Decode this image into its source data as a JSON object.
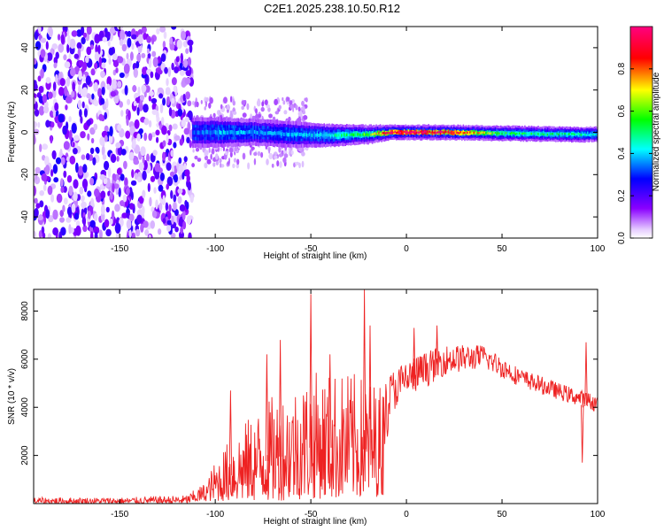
{
  "figure_title": "C2E1.2025.238.10.50.R12",
  "chart_data": [
    {
      "type": "heatmap",
      "name": "spectrogram",
      "xlabel": "Height of straight line (km)",
      "ylabel": "Frequency (Hz)",
      "xlim": [
        -195,
        100
      ],
      "ylim": [
        -50,
        50
      ],
      "xticks": [
        -150,
        -100,
        -50,
        0,
        50,
        100
      ],
      "yticks": [
        -40,
        -20,
        0,
        20,
        40
      ],
      "colorbar": {
        "label": "Normalized spectral amplitude",
        "range": [
          0.0,
          1.0
        ],
        "ticks": [
          0.0,
          0.2,
          0.4,
          0.6,
          0.8
        ],
        "colormap": [
          "#ffffff",
          "#8a00ff",
          "#0000ff",
          "#00ffff",
          "#00ff00",
          "#ffff00",
          "#ff0000",
          "#ff0080"
        ]
      },
      "noise_region_x": [
        -195,
        -112
      ],
      "signal_band": [
        {
          "x": -112,
          "center": 0,
          "halfwidth": 4,
          "peak": 0.35
        },
        {
          "x": -100,
          "center": 0,
          "halfwidth": 4,
          "peak": 0.4
        },
        {
          "x": -80,
          "center": 0,
          "halfwidth": 3.5,
          "peak": 0.4
        },
        {
          "x": -60,
          "center": -1,
          "halfwidth": 3.5,
          "peak": 0.4
        },
        {
          "x": -40,
          "center": -1.5,
          "halfwidth": 3,
          "peak": 0.45
        },
        {
          "x": -20,
          "center": -1,
          "halfwidth": 2.5,
          "peak": 0.6
        },
        {
          "x": -8,
          "center": 0,
          "halfwidth": 2,
          "peak": 0.9
        },
        {
          "x": 0,
          "center": 0,
          "halfwidth": 2,
          "peak": 1.0
        },
        {
          "x": 20,
          "center": 0,
          "halfwidth": 2,
          "peak": 0.95
        },
        {
          "x": 50,
          "center": -0.5,
          "halfwidth": 2,
          "peak": 0.55
        },
        {
          "x": 90,
          "center": -1,
          "halfwidth": 2,
          "peak": 0.5
        },
        {
          "x": 100,
          "center": -1,
          "halfwidth": 2,
          "peak": 0.45
        }
      ]
    },
    {
      "type": "line",
      "name": "snr",
      "xlabel": "Height of straight line (km)",
      "ylabel": "SNR (10 * v/v)",
      "xlim": [
        -195,
        100
      ],
      "ylim": [
        0,
        8900
      ],
      "xticks": [
        -150,
        -100,
        -50,
        0,
        50,
        100
      ],
      "yticks": [
        2000,
        4000,
        6000,
        8000
      ],
      "color": "#ee2222",
      "series": [
        {
          "name": "SNR",
          "envelope": [
            {
              "x": -195,
              "lo": 0,
              "hi": 260
            },
            {
              "x": -150,
              "lo": 0,
              "hi": 250
            },
            {
              "x": -115,
              "lo": 0,
              "hi": 350
            },
            {
              "x": -105,
              "lo": 100,
              "hi": 900
            },
            {
              "x": -100,
              "lo": 100,
              "hi": 1800
            },
            {
              "x": -90,
              "lo": 100,
              "hi": 3000
            },
            {
              "x": -70,
              "lo": 100,
              "hi": 4500
            },
            {
              "x": -50,
              "lo": 200,
              "hi": 5500
            },
            {
              "x": -30,
              "lo": 200,
              "hi": 5500
            },
            {
              "x": -12,
              "lo": 300,
              "hi": 5000
            },
            {
              "x": -8,
              "lo": 3000,
              "hi": 5500
            },
            {
              "x": 0,
              "lo": 3600,
              "hi": 6000
            },
            {
              "x": 20,
              "lo": 4800,
              "hi": 6600
            },
            {
              "x": 40,
              "lo": 5200,
              "hi": 6600
            },
            {
              "x": 60,
              "lo": 4500,
              "hi": 5600
            },
            {
              "x": 80,
              "lo": 4000,
              "hi": 5000
            },
            {
              "x": 100,
              "lo": 3500,
              "hi": 4500
            }
          ],
          "spikes": [
            {
              "x": -92,
              "y": 4700
            },
            {
              "x": -73,
              "y": 6200
            },
            {
              "x": -66,
              "y": 6800
            },
            {
              "x": -50,
              "y": 8700
            },
            {
              "x": -40,
              "y": 6200
            },
            {
              "x": -22,
              "y": 8900
            },
            {
              "x": -19,
              "y": 7400
            },
            {
              "x": 4,
              "y": 7300
            },
            {
              "x": 16,
              "y": 7400
            },
            {
              "x": 92,
              "y": 1700
            },
            {
              "x": 94,
              "y": 6700
            }
          ]
        }
      ]
    }
  ]
}
